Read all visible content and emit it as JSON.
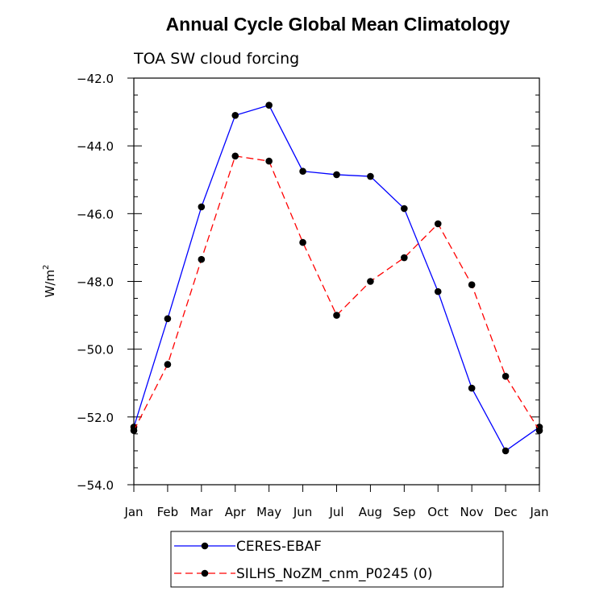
{
  "chart_data": {
    "type": "line",
    "title": "Annual Cycle Global Mean Climatology",
    "subtitle": "TOA SW cloud forcing",
    "xlabel": "",
    "ylabel": "W/m",
    "ylabel_superscript": "2",
    "ylim": [
      -54.0,
      -42.0
    ],
    "yticks": [
      -42.0,
      -44.0,
      -46.0,
      -48.0,
      -50.0,
      -52.0,
      -54.0
    ],
    "ytick_labels": [
      "−42.0",
      "−44.0",
      "−46.0",
      "−48.0",
      "−50.0",
      "−52.0",
      "−54.0"
    ],
    "categories": [
      "Jan",
      "Feb",
      "Mar",
      "Apr",
      "May",
      "Jun",
      "Jul",
      "Aug",
      "Sep",
      "Oct",
      "Nov",
      "Dec",
      "Jan"
    ],
    "series": [
      {
        "name": "CERES-EBAF",
        "color": "#0000ff",
        "dash": "solid",
        "values": [
          -52.3,
          -49.1,
          -45.8,
          -43.1,
          -42.8,
          -44.75,
          -44.85,
          -44.9,
          -45.85,
          -48.3,
          -51.15,
          -53.0,
          -52.3
        ]
      },
      {
        "name": "SILHS_NoZM_cnm_P0245 (0)",
        "color": "#ff0000",
        "dash": "dashed",
        "values": [
          -52.4,
          -50.45,
          -47.35,
          -44.3,
          -44.45,
          -46.85,
          -49.0,
          -48.0,
          -47.3,
          -46.3,
          -48.1,
          -50.8,
          -52.4
        ]
      }
    ]
  }
}
